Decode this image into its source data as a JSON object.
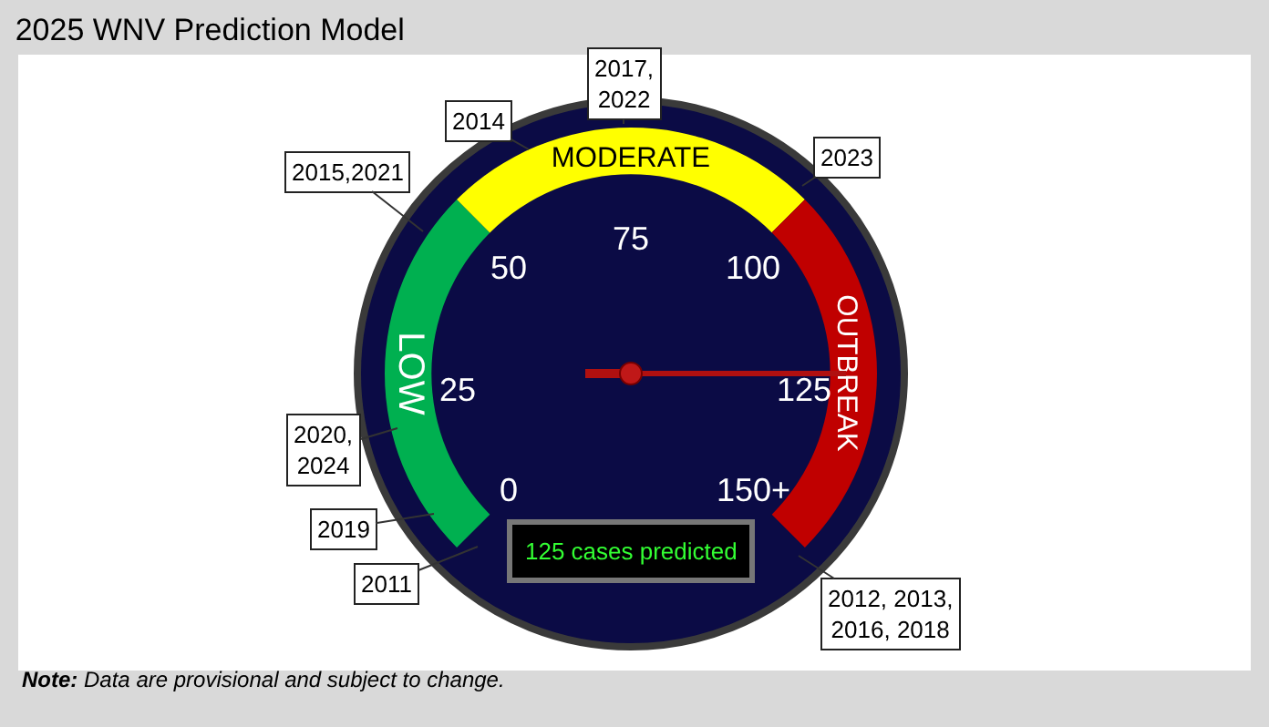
{
  "chart_data": {
    "type": "donut",
    "title": "2025 WNV Prediction Model",
    "categories": [
      "LOW",
      "MODERATE",
      "OUTBREAK"
    ],
    "values": [
      33.33,
      33.33,
      33.34
    ],
    "colors": [
      "#00b050",
      "#ffff00",
      "#c00000"
    ],
    "needle": "OUTBREAK",
    "annotations": [
      "0",
      "25",
      "50",
      "75",
      "100",
      "125",
      "150+",
      "2015,2021",
      "2014",
      "2017,\n2022",
      "2023",
      "2020,\n2024",
      "2019",
      "2011",
      "2012, 2013,\n2016, 2018",
      "125 cases predicted",
      "Note: Data are provisional and subject to change."
    ]
  }
}
